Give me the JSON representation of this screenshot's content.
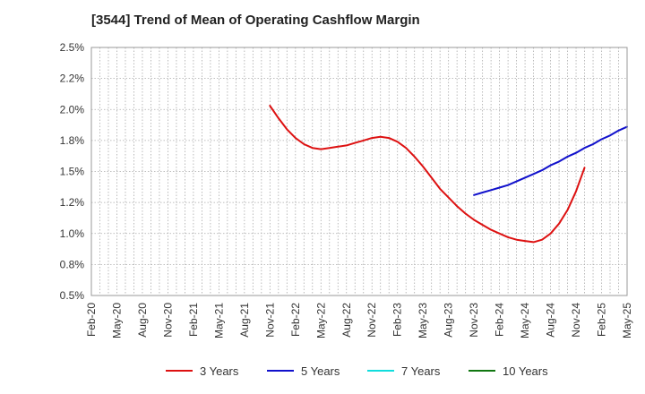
{
  "chart_data": {
    "type": "line",
    "title": "[3544]  Trend of Mean of Operating Cashflow Margin",
    "xlabel": "",
    "ylabel": "",
    "x_ticks": [
      "Feb-20",
      "May-20",
      "Aug-20",
      "Nov-20",
      "Feb-21",
      "May-21",
      "Aug-21",
      "Nov-21",
      "Feb-22",
      "May-22",
      "Aug-22",
      "Nov-22",
      "Feb-23",
      "May-23",
      "Aug-23",
      "Nov-23",
      "Feb-24",
      "May-24",
      "Aug-24",
      "Nov-24",
      "Feb-25",
      "May-25"
    ],
    "y_ticks": [
      "0.5%",
      "0.8%",
      "1.0%",
      "1.2%",
      "1.5%",
      "1.8%",
      "2.0%",
      "2.2%",
      "2.5%"
    ],
    "ylim": [
      0.5,
      2.5
    ],
    "grid": true,
    "legend_position": "bottom",
    "series": [
      {
        "name": "3 Years",
        "color": "#dd1111",
        "points": [
          [
            "Nov-21",
            2.03
          ],
          [
            "Dec-21",
            1.93
          ],
          [
            "Jan-22",
            1.84
          ],
          [
            "Feb-22",
            1.77
          ],
          [
            "Mar-22",
            1.72
          ],
          [
            "Apr-22",
            1.69
          ],
          [
            "May-22",
            1.68
          ],
          [
            "Jun-22",
            1.69
          ],
          [
            "Jul-22",
            1.7
          ],
          [
            "Aug-22",
            1.71
          ],
          [
            "Sep-22",
            1.73
          ],
          [
            "Oct-22",
            1.75
          ],
          [
            "Nov-22",
            1.77
          ],
          [
            "Dec-22",
            1.78
          ],
          [
            "Jan-23",
            1.77
          ],
          [
            "Feb-23",
            1.74
          ],
          [
            "Mar-23",
            1.69
          ],
          [
            "Apr-23",
            1.62
          ],
          [
            "May-23",
            1.54
          ],
          [
            "Jun-23",
            1.45
          ],
          [
            "Jul-23",
            1.36
          ],
          [
            "Aug-23",
            1.29
          ],
          [
            "Sep-23",
            1.22
          ],
          [
            "Oct-23",
            1.16
          ],
          [
            "Nov-23",
            1.11
          ],
          [
            "Dec-23",
            1.07
          ],
          [
            "Jan-24",
            1.03
          ],
          [
            "Feb-24",
            1.0
          ],
          [
            "Mar-24",
            0.97
          ],
          [
            "Apr-24",
            0.95
          ],
          [
            "May-24",
            0.94
          ],
          [
            "Jun-24",
            0.93
          ],
          [
            "Jul-24",
            0.95
          ],
          [
            "Aug-24",
            1.0
          ],
          [
            "Sep-24",
            1.08
          ],
          [
            "Oct-24",
            1.19
          ],
          [
            "Nov-24",
            1.34
          ],
          [
            "Dec-24",
            1.53
          ]
        ]
      },
      {
        "name": "5 Years",
        "color": "#1111cc",
        "points": [
          [
            "Nov-23",
            1.31
          ],
          [
            "Dec-23",
            1.33
          ],
          [
            "Jan-24",
            1.35
          ],
          [
            "Feb-24",
            1.37
          ],
          [
            "Mar-24",
            1.39
          ],
          [
            "Apr-24",
            1.42
          ],
          [
            "May-24",
            1.45
          ],
          [
            "Jun-24",
            1.48
          ],
          [
            "Jul-24",
            1.51
          ],
          [
            "Aug-24",
            1.55
          ],
          [
            "Sep-24",
            1.58
          ],
          [
            "Oct-24",
            1.62
          ],
          [
            "Nov-24",
            1.65
          ],
          [
            "Dec-24",
            1.69
          ],
          [
            "Jan-25",
            1.72
          ],
          [
            "Feb-25",
            1.76
          ],
          [
            "Mar-25",
            1.79
          ],
          [
            "Apr-25",
            1.83
          ],
          [
            "May-25",
            1.86
          ]
        ]
      },
      {
        "name": "7 Years",
        "color": "#11dddd",
        "points": []
      },
      {
        "name": "10 Years",
        "color": "#117711",
        "points": []
      }
    ]
  }
}
